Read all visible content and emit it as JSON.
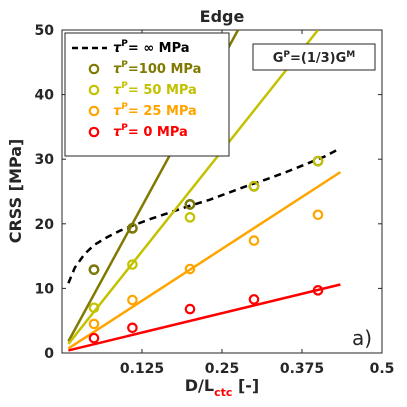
{
  "chart_data": {
    "type": "scatter",
    "title": "Edge",
    "xlabel": {
      "main": "D/L",
      "sub": "ctc",
      "unit": " [-]"
    },
    "ylabel": "CRSS [MPa]",
    "xlim": [
      0.0,
      0.5
    ],
    "ylim": [
      0,
      50
    ],
    "xticks": [
      0.125,
      0.25,
      0.375,
      0.5
    ],
    "xtick_labels": [
      "0.125",
      "0.25",
      "0.375",
      "0.5"
    ],
    "yticks": [
      0,
      10,
      20,
      30,
      40,
      50
    ],
    "ytick_labels": [
      "0",
      "10",
      "20",
      "30",
      "40",
      "50"
    ],
    "grid": false,
    "legend_position": "top-left",
    "panel_label": "a)",
    "annotation": {
      "main": "G",
      "sup": "P",
      "rest": "=(1/3)G",
      "sup2": "M"
    },
    "series": [
      {
        "legend": {
          "sym": "τ",
          "sup": "P",
          "text": "=  ∞ MPa"
        },
        "color": "#000000",
        "style": "dashed-curve",
        "curve_x": [
          0.01,
          0.02,
          0.035,
          0.05,
          0.07,
          0.09,
          0.11,
          0.14,
          0.17,
          0.2,
          0.23,
          0.26,
          0.29,
          0.32,
          0.35,
          0.38,
          0.41,
          0.435
        ],
        "curve_y": [
          10.8,
          13.2,
          15.3,
          16.7,
          17.9,
          18.9,
          19.7,
          20.8,
          21.8,
          22.8,
          23.7,
          24.8,
          25.9,
          26.9,
          28.0,
          29.2,
          30.4,
          31.7
        ],
        "points_x": [
          0.05,
          0.11,
          0.2,
          0.3,
          0.4
        ],
        "points_y": [
          12.9,
          19.3,
          23.0,
          25.8,
          29.7
        ]
      },
      {
        "legend": {
          "sym": "τ",
          "sup": "P",
          "text": "=100 MPa"
        },
        "color": "#807a00",
        "style": "line",
        "line": [
          [
            0.01,
            1.8
          ],
          [
            0.275,
            50
          ]
        ],
        "points_x": [
          0.05,
          0.11,
          0.2
        ],
        "points_y": [
          12.9,
          19.3,
          23.0
        ]
      },
      {
        "legend": {
          "sym": "τ",
          "sup": "P",
          "text": "=  50 MPa"
        },
        "color": "#c2c200",
        "style": "line",
        "line": [
          [
            0.01,
            1.4
          ],
          [
            0.4,
            50
          ]
        ],
        "points_x": [
          0.05,
          0.11,
          0.2,
          0.3,
          0.4
        ],
        "points_y": [
          7.0,
          13.7,
          21.0,
          25.8,
          29.7
        ]
      },
      {
        "legend": {
          "sym": "τ",
          "sup": "P",
          "text": "=  25 MPa"
        },
        "color": "#ffa500",
        "style": "line",
        "line": [
          [
            0.01,
            0.7
          ],
          [
            0.435,
            28.0
          ]
        ],
        "points_x": [
          0.05,
          0.11,
          0.2,
          0.3,
          0.4
        ],
        "points_y": [
          4.5,
          8.2,
          13.0,
          17.4,
          21.4
        ]
      },
      {
        "legend": {
          "sym": "τ",
          "sup": "P",
          "text": "=    0 MPa"
        },
        "color": "#ff0000",
        "style": "line",
        "line": [
          [
            0.01,
            0.4
          ],
          [
            0.435,
            10.6
          ]
        ],
        "points_x": [
          0.05,
          0.11,
          0.2,
          0.3,
          0.4
        ],
        "points_y": [
          2.3,
          3.9,
          6.8,
          8.3,
          9.7
        ]
      }
    ]
  }
}
